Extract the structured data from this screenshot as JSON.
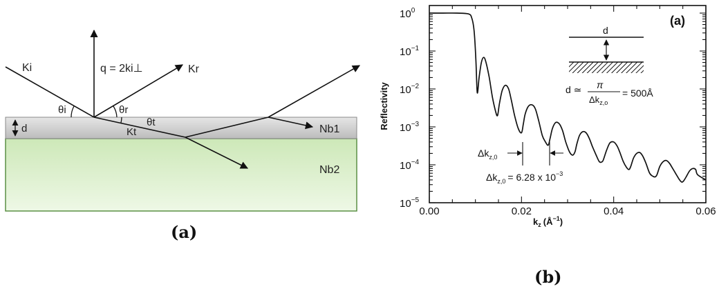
{
  "panel_a": {
    "labels": {
      "ki": "Ki",
      "kr": "Kr",
      "kt": "Kt",
      "q": "q = 2ki⊥",
      "theta_i": "θi",
      "theta_r": "θr",
      "theta_t": "θt",
      "d": "d",
      "nb1": "Nb1",
      "nb2": "Nb2"
    },
    "colors": {
      "film": "#cfcfcf",
      "substrate": "#d6efc4",
      "substrate_border": "#4f8a3a"
    },
    "caption": "(a)"
  },
  "panel_b": {
    "tag": "(a)",
    "ylabel": "Reflectivity",
    "xlabel": "k",
    "xlabel_sub": "z",
    "xlabel_unit": "(Å",
    "xlabel_unit_sup": "−1",
    "xlabel_unit_close": ")",
    "inset": {
      "d_label": "d",
      "formula_lhs": "d ≃",
      "formula_num": "π",
      "formula_den": "Δk",
      "formula_den_sub": "z,o",
      "formula_rhs": "= 500Å"
    },
    "annotation": {
      "delta_label": "Δk",
      "delta_sub": "z,0",
      "value_label": "Δk",
      "value_sub": "z,0",
      "value_text": "= 6.28 x 10",
      "value_exp": "−3"
    },
    "caption": "(b)"
  },
  "chart_data": {
    "type": "line",
    "title": "",
    "xlabel": "kz (Å⁻¹)",
    "ylabel": "Reflectivity",
    "xlim": [
      0.0,
      0.06
    ],
    "ylim": [
      1e-05,
      2
    ],
    "yscale": "log",
    "grid": false,
    "x_ticks": [
      "0.00",
      "0.02",
      "0.04",
      "0.06"
    ],
    "x_tick_values": [
      0.0,
      0.02,
      0.04,
      0.06
    ],
    "y_ticks": [
      {
        "base": "10",
        "exp": "0",
        "value": 1
      },
      {
        "base": "10",
        "exp": "-1",
        "value": 0.1
      },
      {
        "base": "10",
        "exp": "-2",
        "value": 0.01
      },
      {
        "base": "10",
        "exp": "-3",
        "value": 0.001
      },
      {
        "base": "10",
        "exp": "-4",
        "value": 0.0001
      },
      {
        "base": "10",
        "exp": "-5",
        "value": 1e-05
      }
    ],
    "series": [
      {
        "x": [
          0.0,
          0.003,
          0.006,
          0.0085,
          0.0092,
          0.0097,
          0.0101,
          0.0104,
          0.0108,
          0.0113,
          0.0118,
          0.0123,
          0.013,
          0.0137,
          0.0144,
          0.0148,
          0.0152,
          0.0158,
          0.0165,
          0.0172,
          0.0178,
          0.0185,
          0.0193,
          0.02,
          0.0204,
          0.0208,
          0.0215,
          0.0223,
          0.023,
          0.0237,
          0.0245,
          0.0252,
          0.0258,
          0.0262,
          0.0267,
          0.0274,
          0.0282,
          0.0289,
          0.0296,
          0.0304,
          0.0311,
          0.0316,
          0.032,
          0.0326,
          0.0333,
          0.034,
          0.0347,
          0.0354,
          0.0362,
          0.0369,
          0.0375,
          0.0378,
          0.0385,
          0.0392,
          0.04,
          0.0407,
          0.0413,
          0.0421,
          0.0428,
          0.0433,
          0.0437,
          0.0443,
          0.045,
          0.0457,
          0.0463,
          0.047,
          0.0478,
          0.0485,
          0.049,
          0.0494,
          0.05,
          0.0507,
          0.0514,
          0.0521,
          0.0528,
          0.0536,
          0.0543,
          0.0548,
          0.0552,
          0.0558,
          0.0565,
          0.0572,
          0.0578,
          0.0582,
          0.06
        ],
        "y": [
          1.0,
          1.0,
          1.0,
          0.95,
          0.75,
          0.35,
          0.06,
          0.008,
          0.02,
          0.05,
          0.068,
          0.05,
          0.02,
          0.006,
          0.0025,
          0.002,
          0.004,
          0.009,
          0.0125,
          0.01,
          0.005,
          0.002,
          0.0009,
          0.0007,
          0.0012,
          0.0022,
          0.0035,
          0.0038,
          0.003,
          0.0015,
          0.0006,
          0.0004,
          0.00033,
          0.0005,
          0.0009,
          0.0013,
          0.0012,
          0.0008,
          0.0004,
          0.00022,
          0.00018,
          0.00022,
          0.00035,
          0.0006,
          0.00075,
          0.0007,
          0.0005,
          0.0003,
          0.00018,
          0.00012,
          0.00012,
          0.00014,
          0.00025,
          0.00038,
          0.0004,
          0.00032,
          0.00022,
          0.00012,
          8.5e-05,
          7.5e-05,
          9e-05,
          0.00015,
          0.0002,
          0.00021,
          0.00017,
          0.00011,
          6e-05,
          5e-05,
          4.8e-05,
          5.5e-05,
          9e-05,
          0.00012,
          0.00013,
          0.00011,
          8e-05,
          5.5e-05,
          4e-05,
          3.5e-05,
          3.8e-05,
          5e-05,
          7e-05,
          8e-05,
          7.5e-05,
          5.5e-05,
          4e-05
        ]
      }
    ]
  }
}
